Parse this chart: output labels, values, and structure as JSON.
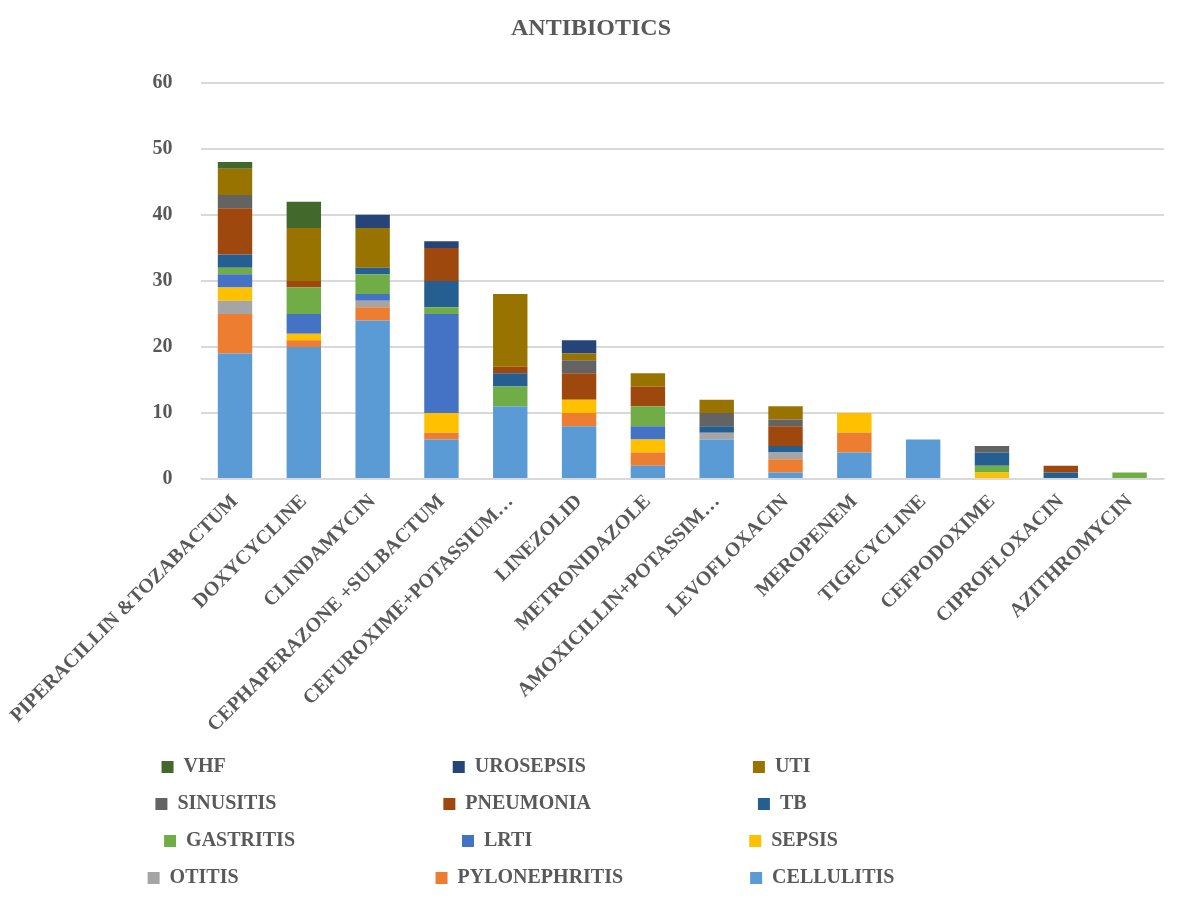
{
  "chart_data": {
    "type": "bar",
    "title": "ANTIBIOTICS",
    "stacked": true,
    "grid": "y",
    "legend": "bottom",
    "categories": [
      "PIPERACILLIN &TOZABACTUM",
      "DOXYCYCLINE",
      "CLINDAMYCIN",
      "CEPHAPERAZONE +SULBACTUM",
      "CEFUROXIME+POTASSIUM…",
      "LINEZOLID",
      "METRONIDAZOLE",
      "AMOXICILLIN+POTASSIM…",
      "LEVOFLOXACIN",
      "MEROPENEM",
      "TIGECYCLINE",
      "CEFPODOXIME",
      "CIPROFLOXACIN",
      "AZITHROMYCIN"
    ],
    "ylim": [
      0,
      60
    ],
    "yticks": [
      0,
      10,
      20,
      30,
      40,
      50,
      60
    ],
    "series": [
      {
        "name": "CELLULITIS",
        "color": "#5b9bd5",
        "values": [
          19,
          20,
          24,
          6,
          11,
          8,
          2,
          6,
          1,
          4,
          6,
          0,
          0,
          0
        ]
      },
      {
        "name": "PYLONEPHRITIS",
        "color": "#ed7d31",
        "values": [
          6,
          1,
          2,
          1,
          0,
          2,
          2,
          0,
          2,
          3,
          0,
          0,
          0,
          0
        ]
      },
      {
        "name": "OTITIS",
        "color": "#a5a5a5",
        "values": [
          2,
          0,
          1,
          0,
          0,
          0,
          0,
          1,
          1,
          0,
          0,
          0,
          0,
          0
        ]
      },
      {
        "name": "SEPSIS",
        "color": "#ffc000",
        "values": [
          2,
          1,
          0,
          3,
          0,
          2,
          2,
          0,
          0,
          3,
          0,
          1,
          0,
          0
        ]
      },
      {
        "name": "LRTI",
        "color": "#4472c4",
        "values": [
          2,
          3,
          1,
          15,
          0,
          0,
          2,
          0,
          0,
          0,
          0,
          0,
          0,
          0
        ]
      },
      {
        "name": "GASTRITIS",
        "color": "#70ad47",
        "values": [
          1,
          4,
          3,
          1,
          3,
          0,
          3,
          0,
          0,
          0,
          0,
          1,
          0,
          1
        ]
      },
      {
        "name": "TB",
        "color": "#255e91",
        "values": [
          2,
          0,
          1,
          4,
          2,
          0,
          0,
          1,
          1,
          0,
          0,
          2,
          1,
          0
        ]
      },
      {
        "name": "PNEUMONIA",
        "color": "#9e480e",
        "values": [
          7,
          1,
          0,
          5,
          1,
          4,
          3,
          0,
          3,
          0,
          0,
          0,
          1,
          0
        ]
      },
      {
        "name": "SINUSITIS",
        "color": "#636363",
        "values": [
          2,
          0,
          0,
          0,
          0,
          2,
          0,
          2,
          1,
          0,
          0,
          1,
          0,
          0
        ]
      },
      {
        "name": "UTI",
        "color": "#997300",
        "values": [
          4,
          8,
          6,
          0,
          11,
          1,
          2,
          2,
          2,
          0,
          0,
          0,
          0,
          0
        ]
      },
      {
        "name": "UROSEPSIS",
        "color": "#264478",
        "values": [
          0,
          0,
          2,
          1,
          0,
          2,
          0,
          0,
          0,
          0,
          0,
          0,
          0,
          0
        ]
      },
      {
        "name": "VHF",
        "color": "#43682b",
        "values": [
          1,
          4,
          0,
          0,
          0,
          0,
          0,
          0,
          0,
          0,
          0,
          0,
          0,
          0
        ]
      }
    ]
  }
}
